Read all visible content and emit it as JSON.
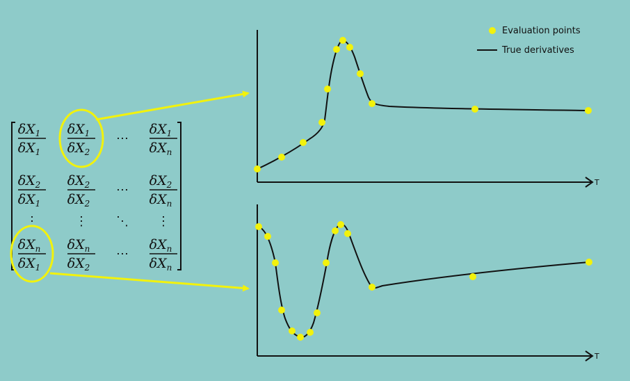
{
  "legend": {
    "points_label": "Evaluation points",
    "line_label": "True derivatives"
  },
  "axis": {
    "x_label_top": "T",
    "x_label_bottom": "T"
  },
  "colors": {
    "background": "#8ecbc9",
    "highlight": "#f2f20c",
    "ink": "#111111"
  },
  "matrix": {
    "rows": [
      [
        {
          "num": "1",
          "den": "1"
        },
        {
          "num": "1",
          "den": "2"
        },
        {
          "dots": "⋯"
        },
        {
          "num": "1",
          "den": "n"
        }
      ],
      [
        {
          "num": "2",
          "den": "1"
        },
        {
          "num": "2",
          "den": "2"
        },
        {
          "dots": "⋯"
        },
        {
          "num": "2",
          "den": "n"
        }
      ],
      [
        {
          "dots": "⋮"
        },
        {
          "dots": "⋮"
        },
        {
          "dots": "⋱"
        },
        {
          "dots": "⋮"
        }
      ],
      [
        {
          "num": "n",
          "den": "1"
        },
        {
          "num": "n",
          "den": "2"
        },
        {
          "dots": "⋯"
        },
        {
          "num": "n",
          "den": "n"
        }
      ]
    ],
    "symbol": "δX"
  }
}
